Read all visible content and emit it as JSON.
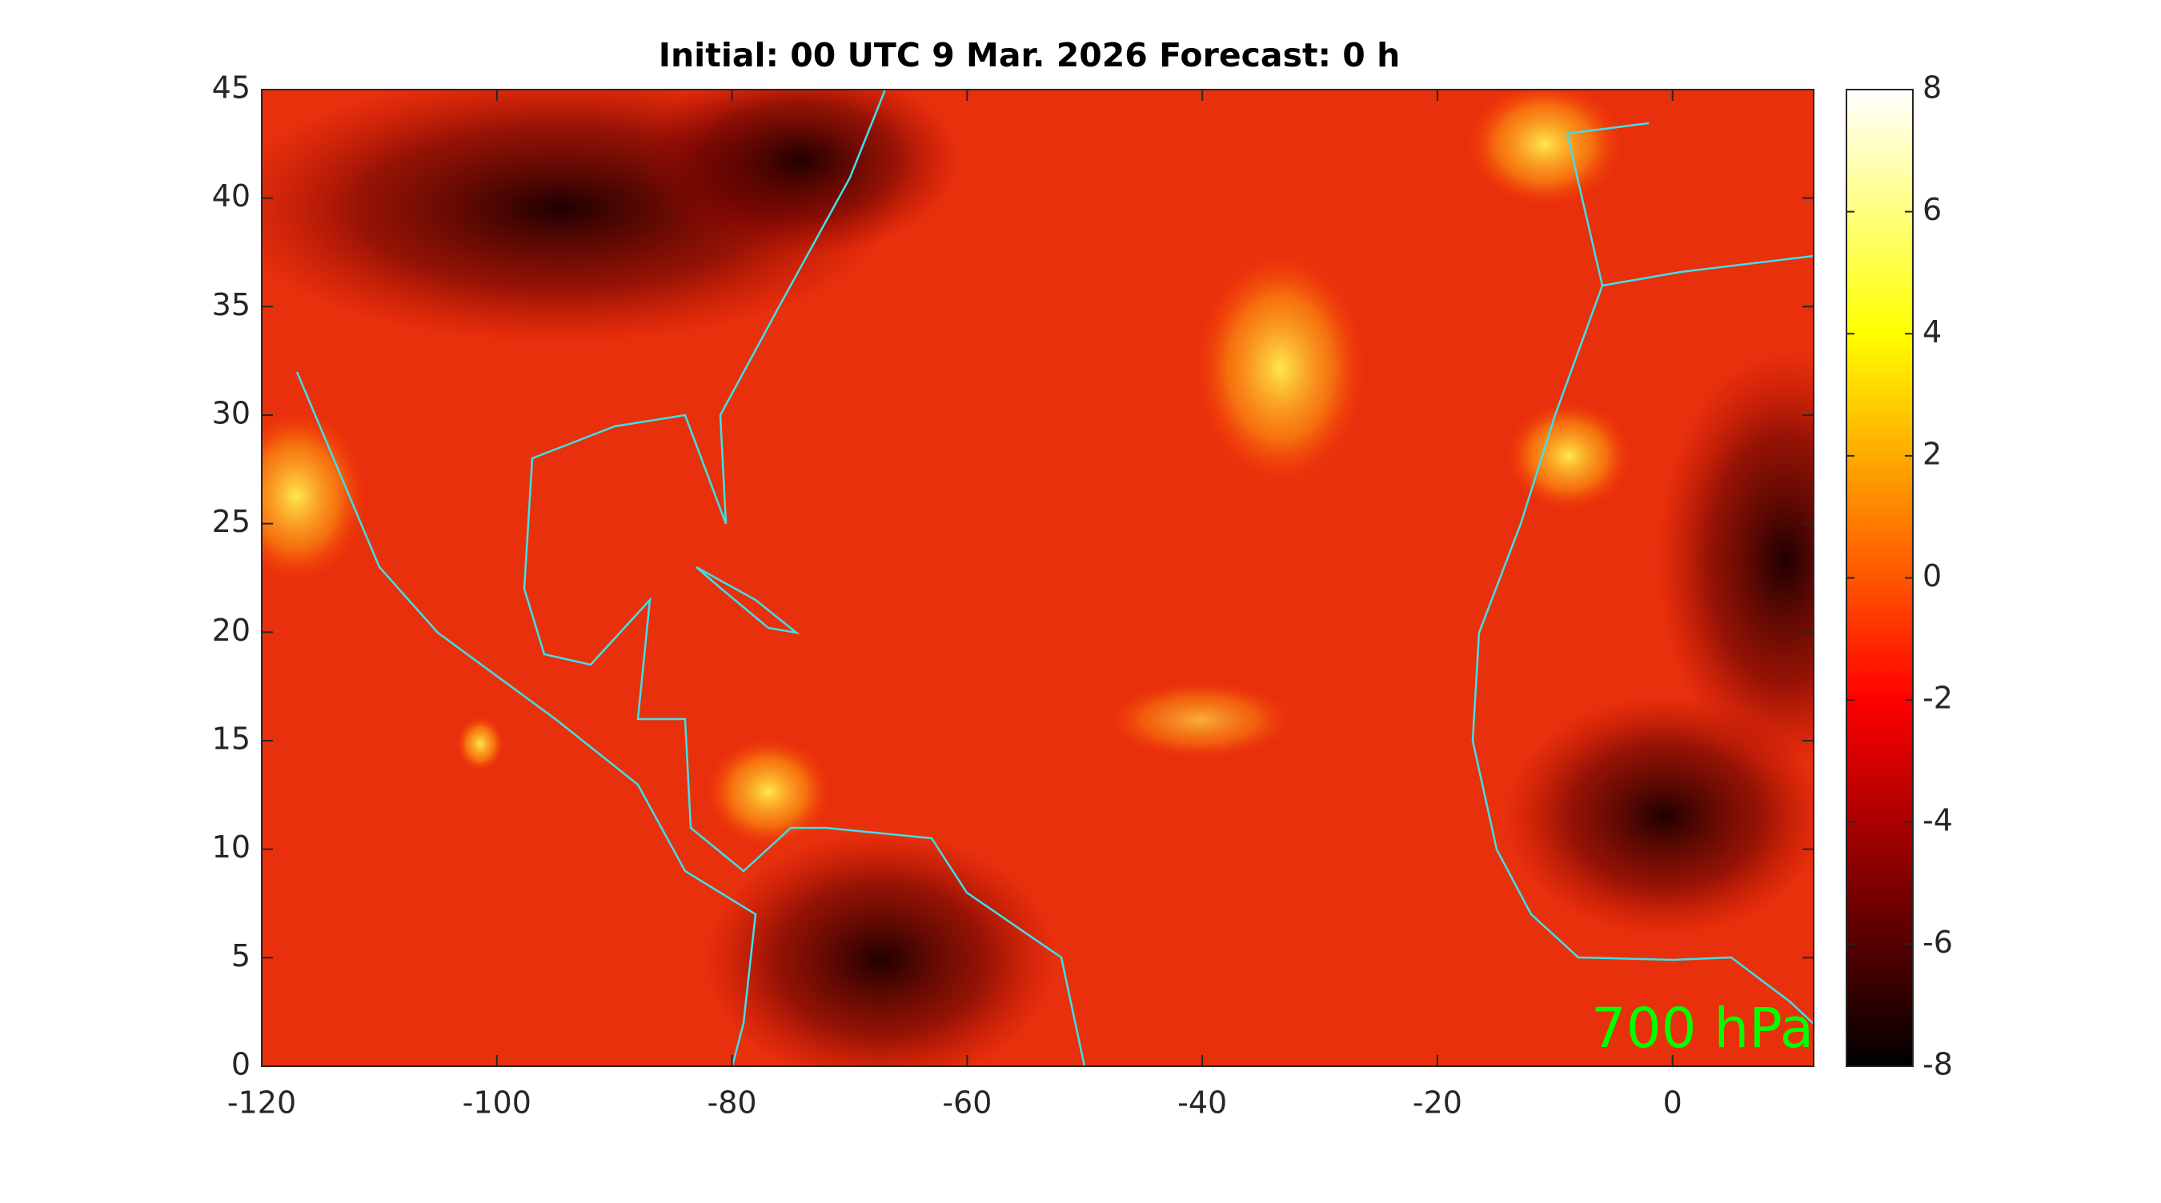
{
  "chart_data": {
    "type": "heatmap",
    "title": "Initial: 00 UTC 9 Mar. 2026 Forecast: 0 h",
    "xlim": [
      -120,
      12
    ],
    "xticks": [
      -120,
      -100,
      -80,
      -60,
      -40,
      -20,
      0
    ],
    "ylim": [
      0,
      45
    ],
    "yticks": [
      0,
      5,
      10,
      15,
      20,
      25,
      30,
      35,
      40,
      45
    ],
    "colorbar": {
      "lim": [
        -8,
        8
      ],
      "ticks": [
        -8,
        -6,
        -4,
        -2,
        0,
        2,
        4,
        6,
        8
      ]
    },
    "annotation": "700 hPa"
  }
}
